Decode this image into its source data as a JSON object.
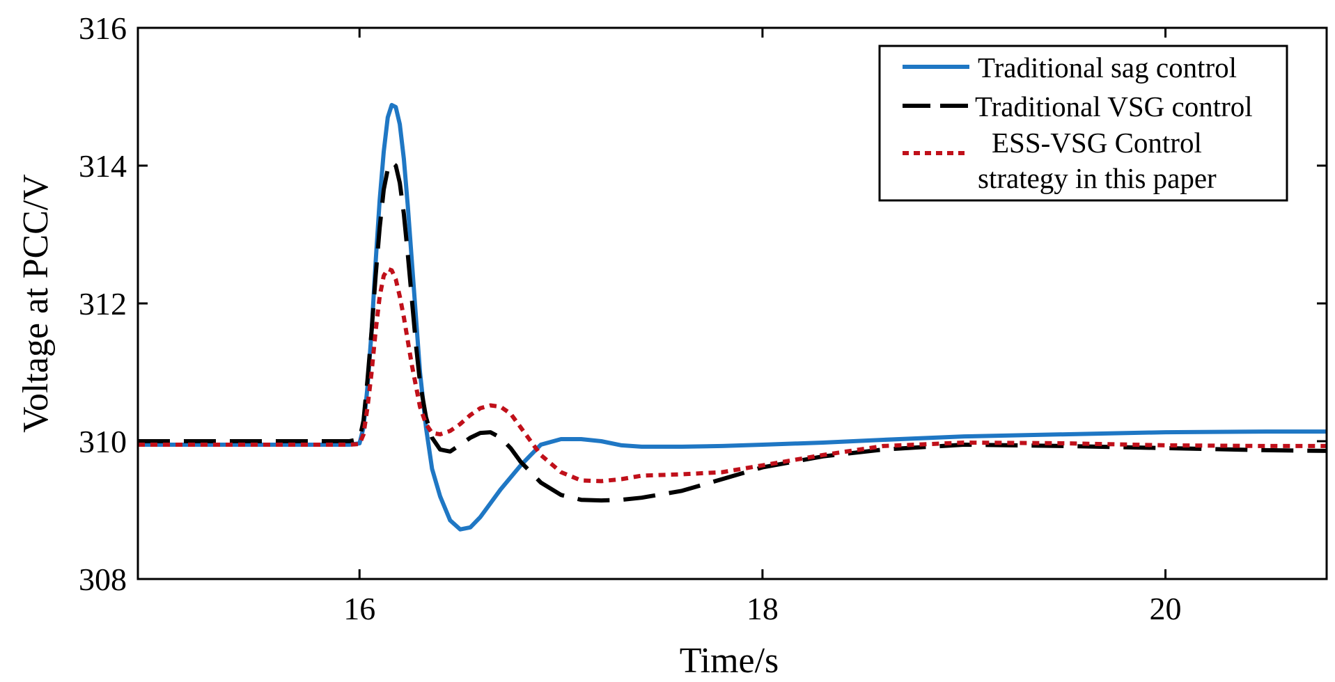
{
  "chart_data": {
    "type": "line",
    "title": "",
    "xlabel": "Time/s",
    "ylabel": "Voltage at PCC/V",
    "xlim": [
      14.9,
      20.8
    ],
    "ylim": [
      308,
      316
    ],
    "xticks": [
      16,
      18,
      20
    ],
    "yticks": [
      308,
      310,
      312,
      314,
      316
    ],
    "grid": false,
    "legend_position": "top-right",
    "series": [
      {
        "name": "Traditional sag control",
        "color": "#1f77c4",
        "dash": "solid",
        "x": [
          14.9,
          15.5,
          15.95,
          16.0,
          16.02,
          16.04,
          16.06,
          16.08,
          16.1,
          16.12,
          16.14,
          16.16,
          16.18,
          16.2,
          16.22,
          16.24,
          16.26,
          16.28,
          16.3,
          16.33,
          16.36,
          16.4,
          16.45,
          16.5,
          16.55,
          16.6,
          16.65,
          16.7,
          16.8,
          16.9,
          17.0,
          17.1,
          17.2,
          17.3,
          17.4,
          17.6,
          17.8,
          18.0,
          18.3,
          18.6,
          19.0,
          19.5,
          20.0,
          20.5,
          20.8
        ],
        "y": [
          309.95,
          309.95,
          309.95,
          309.97,
          310.2,
          310.8,
          311.6,
          312.6,
          313.5,
          314.2,
          314.7,
          314.88,
          314.85,
          314.6,
          314.1,
          313.4,
          312.6,
          311.8,
          311.0,
          310.2,
          309.6,
          309.2,
          308.85,
          308.72,
          308.75,
          308.9,
          309.1,
          309.3,
          309.65,
          309.95,
          310.03,
          310.03,
          310.0,
          309.94,
          309.92,
          309.92,
          309.93,
          309.95,
          309.98,
          310.02,
          310.07,
          310.1,
          310.13,
          310.14,
          310.14
        ]
      },
      {
        "name": "Traditional VSG control",
        "color": "#000000",
        "dash": "long-dash",
        "x": [
          14.9,
          15.5,
          15.95,
          16.0,
          16.02,
          16.04,
          16.06,
          16.08,
          16.1,
          16.12,
          16.14,
          16.16,
          16.18,
          16.2,
          16.22,
          16.24,
          16.26,
          16.28,
          16.3,
          16.33,
          16.36,
          16.4,
          16.45,
          16.5,
          16.55,
          16.6,
          16.65,
          16.7,
          16.75,
          16.8,
          16.9,
          17.0,
          17.1,
          17.2,
          17.3,
          17.4,
          17.6,
          17.8,
          18.0,
          18.3,
          18.6,
          19.0,
          19.5,
          20.0,
          20.5,
          20.8
        ],
        "y": [
          310.0,
          310.0,
          310.0,
          310.03,
          310.3,
          310.9,
          311.6,
          312.4,
          313.1,
          313.65,
          313.95,
          314.05,
          314.0,
          313.75,
          313.3,
          312.7,
          312.05,
          311.4,
          310.85,
          310.35,
          310.05,
          309.88,
          309.85,
          309.95,
          310.05,
          310.12,
          310.13,
          310.05,
          309.9,
          309.7,
          309.4,
          309.22,
          309.15,
          309.14,
          309.15,
          309.18,
          309.28,
          309.45,
          309.62,
          309.78,
          309.88,
          309.95,
          309.93,
          309.9,
          309.87,
          309.86
        ]
      },
      {
        "name": "ESS-VSG Control strategy in this paper",
        "color": "#c0101a",
        "dash": "dotted",
        "x": [
          14.9,
          15.5,
          15.95,
          16.0,
          16.02,
          16.04,
          16.06,
          16.08,
          16.1,
          16.12,
          16.14,
          16.16,
          16.18,
          16.2,
          16.22,
          16.24,
          16.26,
          16.28,
          16.3,
          16.33,
          16.36,
          16.4,
          16.45,
          16.5,
          16.55,
          16.6,
          16.65,
          16.7,
          16.75,
          16.8,
          16.9,
          17.0,
          17.1,
          17.2,
          17.3,
          17.4,
          17.6,
          17.8,
          18.0,
          18.3,
          18.6,
          19.0,
          19.5,
          20.0,
          20.5,
          20.8
        ],
        "y": [
          309.95,
          309.95,
          309.95,
          309.96,
          310.1,
          310.5,
          311.0,
          311.6,
          312.1,
          312.4,
          312.5,
          312.48,
          312.35,
          312.1,
          311.8,
          311.45,
          311.1,
          310.8,
          310.5,
          310.25,
          310.12,
          310.1,
          310.15,
          310.25,
          310.38,
          310.48,
          310.52,
          310.5,
          310.4,
          310.2,
          309.8,
          309.55,
          309.43,
          309.42,
          309.45,
          309.5,
          309.52,
          309.55,
          309.65,
          309.8,
          309.93,
          309.98,
          309.97,
          309.94,
          309.93,
          309.93
        ]
      }
    ]
  }
}
